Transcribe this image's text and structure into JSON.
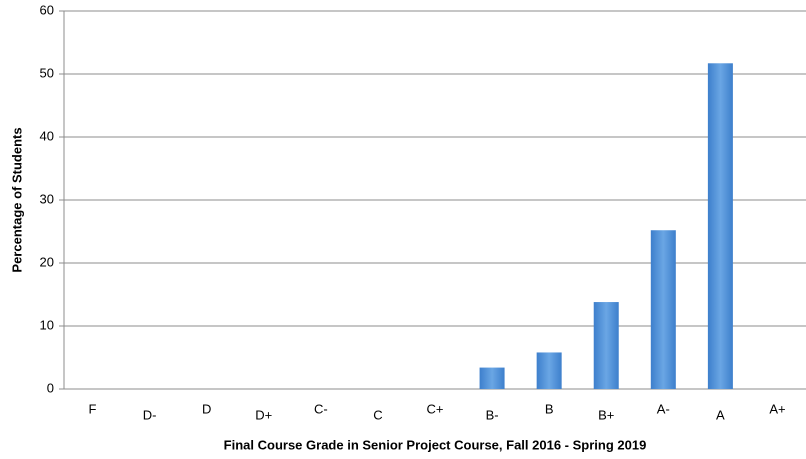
{
  "chart_data": {
    "type": "bar",
    "categories": [
      "F",
      "D-",
      "D",
      "D+",
      "C-",
      "C",
      "C+",
      "B-",
      "B",
      "B+",
      "A-",
      "A",
      "A+"
    ],
    "values": [
      0,
      0,
      0,
      0,
      0,
      0,
      0,
      3.4,
      5.8,
      13.8,
      25.2,
      51.7,
      0
    ],
    "color": "#4a8fd8",
    "ylim": [
      0,
      60
    ],
    "yticks": [
      0,
      10,
      20,
      30,
      40,
      50,
      60
    ],
    "grid": true,
    "y_label": "Percentage of Students",
    "x_label": "Final Course Grade in Senior Project Course, Fall 2016 - Spring 2019"
  }
}
